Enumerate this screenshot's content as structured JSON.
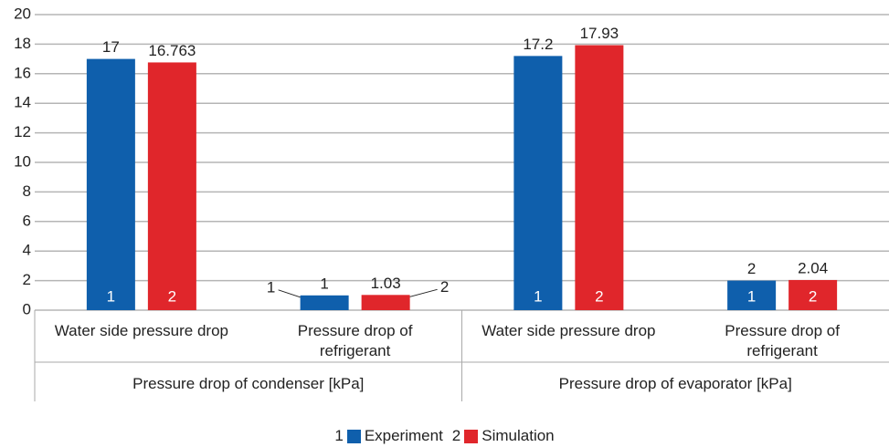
{
  "chart_data": {
    "type": "bar",
    "groups": [
      {
        "name": "Pressure drop of condenser [kPa]",
        "categories": [
          "Water side pressure drop",
          "Pressure drop of refrigerant"
        ]
      },
      {
        "name": "Pressure drop of evaporator [kPa]",
        "categories": [
          "Water side pressure drop",
          "Pressure drop of refrigerant"
        ]
      }
    ],
    "series": [
      {
        "name": "Experiment",
        "marker_label": "1",
        "color": "#0f5fac",
        "values": [
          17,
          1,
          17.2,
          2
        ]
      },
      {
        "name": "Simulation",
        "marker_label": "2",
        "color": "#e0262b",
        "values": [
          16.763,
          1.03,
          17.93,
          2.04
        ]
      }
    ],
    "ylim": [
      0,
      20
    ],
    "yticks": [
      0,
      2,
      4,
      6,
      8,
      10,
      12,
      14,
      16,
      18,
      20
    ],
    "grid": true
  }
}
